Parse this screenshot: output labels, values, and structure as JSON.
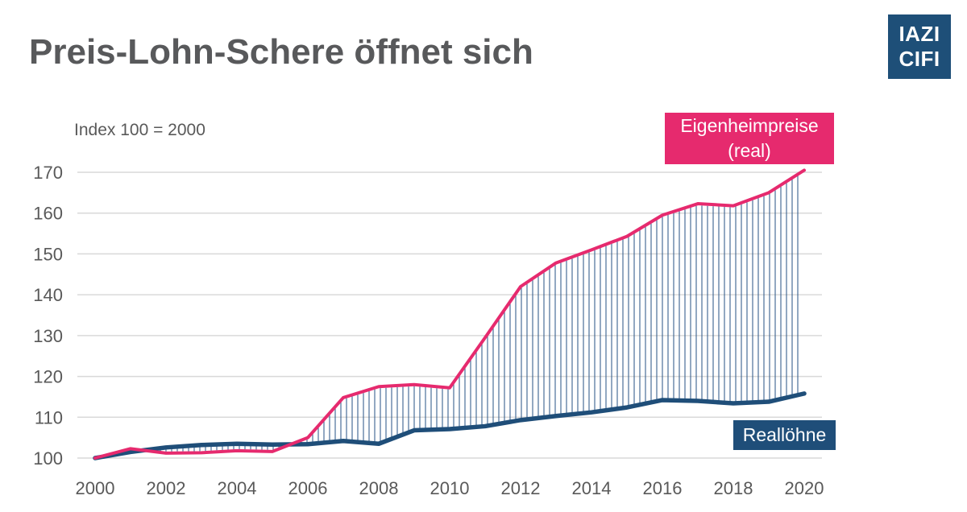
{
  "header": {
    "title": "Preis-Lohn-Schere öffnet sich"
  },
  "logo": {
    "line1": "IAZI",
    "line2": "CIFI"
  },
  "colors": {
    "price": "#e62a6e",
    "wage": "#1f4e79",
    "hatch": "#2b5687",
    "grid": "#d9d9d9",
    "axis_text": "#595959",
    "title_text": "#58595b",
    "logo_bg": "#1e4f78"
  },
  "annotations": {
    "price_label_line1": "Eigenheimpreise",
    "price_label_line2": "(real)",
    "wage_label": "Reallöhne",
    "note": "Index 100 = 2000"
  },
  "chart_data": {
    "type": "line",
    "title": "Preis-Lohn-Schere öffnet sich",
    "subtitle": "Index 100 = 2000",
    "x": [
      2000,
      2001,
      2002,
      2003,
      2004,
      2005,
      2006,
      2007,
      2008,
      2009,
      2010,
      2011,
      2012,
      2013,
      2014,
      2015,
      2016,
      2017,
      2018,
      2019,
      2020
    ],
    "series": [
      {
        "name": "Eigenheimpreise (real)",
        "color": "#e62a6e",
        "values": [
          100,
          102.3,
          101.2,
          101.3,
          101.8,
          101.6,
          105.0,
          114.8,
          117.5,
          118.0,
          117.2,
          129.5,
          142.0,
          147.8,
          151.0,
          154.3,
          159.5,
          162.3,
          161.8,
          165.0,
          170.5
        ]
      },
      {
        "name": "Reallöhne",
        "color": "#1f4e79",
        "values": [
          100,
          101.5,
          102.6,
          103.2,
          103.5,
          103.3,
          103.4,
          104.2,
          103.5,
          106.8,
          107.1,
          107.8,
          109.3,
          110.3,
          111.2,
          112.4,
          114.2,
          114.0,
          113.4,
          113.8,
          115.8
        ]
      }
    ],
    "y_ticks": [
      100,
      110,
      120,
      130,
      140,
      150,
      160,
      170
    ],
    "x_ticks": [
      2000,
      2002,
      2004,
      2006,
      2008,
      2010,
      2012,
      2014,
      2016,
      2018,
      2020
    ],
    "ylim": [
      100,
      170
    ],
    "xlim": [
      2000,
      2020
    ],
    "grid": "horizontal",
    "fill_between": "vertical-hatch",
    "legend_position": "boxes-on-plot"
  }
}
